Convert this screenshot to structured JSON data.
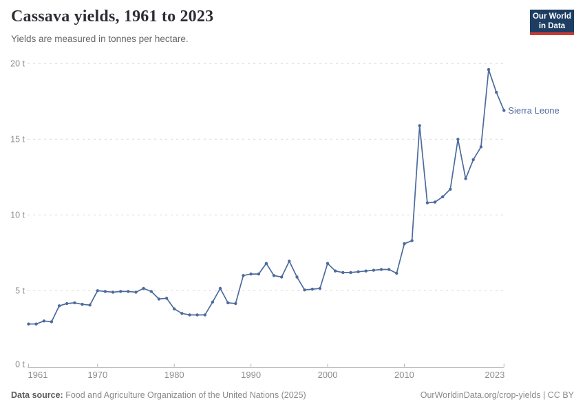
{
  "header": {
    "title": "Cassava yields, 1961 to 2023",
    "subtitle": "Yields are measured in tonnes per hectare.",
    "logo": {
      "line1": "Our World",
      "line2": "in Data",
      "bg_color": "#1d3d63",
      "accent_color": "#cc3b33"
    }
  },
  "chart_data": {
    "type": "line",
    "title": "Cassava yields, 1961 to 2023",
    "unit": "tonnes per hectare",
    "xlabel": "",
    "ylabel": "",
    "xlim": [
      1961,
      2023
    ],
    "ylim": [
      0,
      20
    ],
    "x_ticks": [
      1961,
      1970,
      1980,
      1990,
      2000,
      2010,
      2023
    ],
    "y_ticks": [
      0,
      5,
      10,
      15,
      20
    ],
    "y_tick_suffix": " t",
    "grid": "dashed-horizontal",
    "legend_position": "end-of-line-label",
    "colors": {
      "series": "#4C6A9C",
      "grid": "#dadada",
      "axis": "#a3a3a3",
      "tick": "#b5b5b5",
      "tick_label": "#8f8f8f"
    },
    "series": [
      {
        "name": "Sierra Leone",
        "color": "#4C6A9C",
        "x": [
          1961,
          1962,
          1963,
          1964,
          1965,
          1966,
          1967,
          1968,
          1969,
          1970,
          1971,
          1972,
          1973,
          1974,
          1975,
          1976,
          1977,
          1978,
          1979,
          1980,
          1981,
          1982,
          1983,
          1984,
          1985,
          1986,
          1987,
          1988,
          1989,
          1990,
          1991,
          1992,
          1993,
          1994,
          1995,
          1996,
          1997,
          1998,
          1999,
          2000,
          2001,
          2002,
          2003,
          2004,
          2005,
          2006,
          2007,
          2008,
          2009,
          2010,
          2011,
          2012,
          2013,
          2014,
          2015,
          2016,
          2017,
          2018,
          2019,
          2020,
          2021,
          2022,
          2023
        ],
        "values": [
          2.8,
          2.8,
          3.0,
          2.95,
          4.0,
          4.15,
          4.2,
          4.1,
          4.05,
          5.0,
          4.95,
          4.9,
          4.95,
          4.95,
          4.9,
          5.15,
          4.95,
          4.45,
          4.5,
          3.8,
          3.5,
          3.4,
          3.4,
          3.4,
          4.25,
          5.15,
          4.2,
          4.15,
          6.0,
          6.1,
          6.1,
          6.8,
          6.0,
          5.9,
          6.95,
          5.9,
          5.05,
          5.1,
          5.15,
          6.8,
          6.3,
          6.2,
          6.2,
          6.25,
          6.3,
          6.35,
          6.4,
          6.4,
          6.15,
          8.1,
          8.3,
          15.9,
          10.8,
          10.85,
          11.2,
          11.7,
          15.0,
          12.4,
          13.65,
          14.5,
          19.6,
          18.1,
          16.9
        ]
      }
    ]
  },
  "footer": {
    "data_source_label": "Data source:",
    "data_source_text": " Food and Agriculture Organization of the United Nations (2025)",
    "url": "OurWorldinData.org/crop-yields",
    "separator": " | ",
    "license": "CC BY"
  }
}
